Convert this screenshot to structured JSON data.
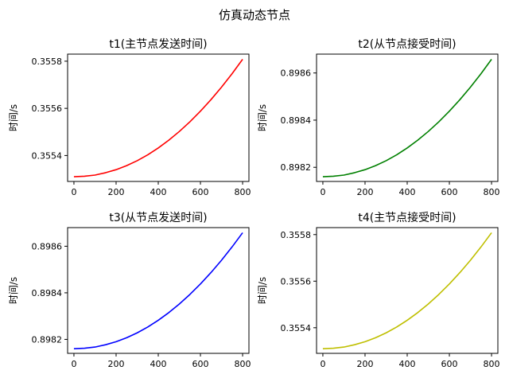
{
  "figure": {
    "suptitle": "仿真动态节点"
  },
  "chart_data": [
    {
      "type": "line",
      "title": "t1(主节点发送时间)",
      "xlabel": "",
      "ylabel": "时间/s",
      "color": "#ff0000",
      "xlim": [
        -30,
        830
      ],
      "ylim": [
        0.35529,
        0.35583
      ],
      "xticks": [
        0,
        200,
        400,
        600,
        800
      ],
      "xtick_labels": [
        "0",
        "200",
        "400",
        "600",
        "800"
      ],
      "yticks": [
        0.3554,
        0.3556,
        0.3558
      ],
      "ytick_labels": [
        "0.3554",
        "0.3556",
        "0.3558"
      ],
      "series": [
        {
          "x": [
            0,
            50,
            100,
            150,
            200,
            250,
            300,
            350,
            400,
            450,
            500,
            550,
            600,
            650,
            700,
            750,
            800
          ],
          "y": [
            0.35531,
            0.355312,
            0.355317,
            0.355327,
            0.35534,
            0.355357,
            0.355378,
            0.355403,
            0.355432,
            0.355465,
            0.355502,
            0.355543,
            0.355588,
            0.355637,
            0.35569,
            0.355747,
            0.355808
          ]
        }
      ]
    },
    {
      "type": "line",
      "title": "t2(从节点接受时间)",
      "xlabel": "",
      "ylabel": "时间/s",
      "color": "#008000",
      "xlim": [
        -30,
        830
      ],
      "ylim": [
        0.89814,
        0.89868
      ],
      "xticks": [
        0,
        200,
        400,
        600,
        800
      ],
      "xtick_labels": [
        "0",
        "200",
        "400",
        "600",
        "800"
      ],
      "yticks": [
        0.8982,
        0.8984,
        0.8986
      ],
      "ytick_labels": [
        "0.8982",
        "0.8984",
        "0.8986"
      ],
      "series": [
        {
          "x": [
            0,
            50,
            100,
            150,
            200,
            250,
            300,
            350,
            400,
            450,
            500,
            550,
            600,
            650,
            700,
            750,
            800
          ],
          "y": [
            0.89816,
            0.898162,
            0.898167,
            0.898177,
            0.89819,
            0.898207,
            0.898228,
            0.898253,
            0.898282,
            0.898315,
            0.898352,
            0.898393,
            0.898438,
            0.898487,
            0.89854,
            0.898597,
            0.898658
          ]
        }
      ]
    },
    {
      "type": "line",
      "title": "t3(从节点发送时间)",
      "xlabel": "",
      "ylabel": "时间/s",
      "color": "#0000ff",
      "xlim": [
        -30,
        830
      ],
      "ylim": [
        0.89814,
        0.89868
      ],
      "xticks": [
        0,
        200,
        400,
        600,
        800
      ],
      "xtick_labels": [
        "0",
        "200",
        "400",
        "600",
        "800"
      ],
      "yticks": [
        0.8982,
        0.8984,
        0.8986
      ],
      "ytick_labels": [
        "0.8982",
        "0.8984",
        "0.8986"
      ],
      "series": [
        {
          "x": [
            0,
            50,
            100,
            150,
            200,
            250,
            300,
            350,
            400,
            450,
            500,
            550,
            600,
            650,
            700,
            750,
            800
          ],
          "y": [
            0.89816,
            0.898162,
            0.898167,
            0.898177,
            0.89819,
            0.898207,
            0.898228,
            0.898253,
            0.898282,
            0.898315,
            0.898352,
            0.898393,
            0.898438,
            0.898487,
            0.89854,
            0.898597,
            0.898658
          ]
        }
      ]
    },
    {
      "type": "line",
      "title": "t4(主节点接受时间)",
      "xlabel": "",
      "ylabel": "时间/s",
      "color": "#bfbf00",
      "xlim": [
        -30,
        830
      ],
      "ylim": [
        0.35529,
        0.35583
      ],
      "xticks": [
        0,
        200,
        400,
        600,
        800
      ],
      "xtick_labels": [
        "0",
        "200",
        "400",
        "600",
        "800"
      ],
      "yticks": [
        0.3554,
        0.3556,
        0.3558
      ],
      "ytick_labels": [
        "0.3554",
        "0.3556",
        "0.3558"
      ],
      "series": [
        {
          "x": [
            0,
            50,
            100,
            150,
            200,
            250,
            300,
            350,
            400,
            450,
            500,
            550,
            600,
            650,
            700,
            750,
            800
          ],
          "y": [
            0.35531,
            0.355312,
            0.355317,
            0.355327,
            0.35534,
            0.355357,
            0.355378,
            0.355403,
            0.355432,
            0.355465,
            0.355502,
            0.355543,
            0.355588,
            0.355637,
            0.35569,
            0.355747,
            0.355808
          ]
        }
      ]
    }
  ]
}
